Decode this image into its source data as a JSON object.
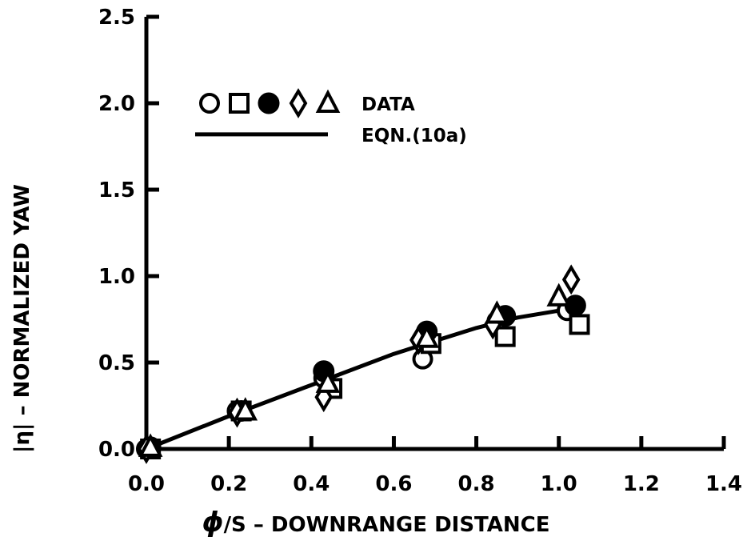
{
  "chart_data": {
    "type": "scatter",
    "xlabel_symbol": "ϕ",
    "xlabel": "/S – DOWNRANGE  DISTANCE",
    "ylabel": "|η| – NORMALIZED  YAW",
    "xlim": [
      0.0,
      1.4
    ],
    "ylim": [
      0.0,
      2.5
    ],
    "x_ticks": [
      "0.0",
      "0.2",
      "0.4",
      "0.6",
      "0.8",
      "1.0",
      "1.2",
      "1.4"
    ],
    "y_ticks": [
      "0.0",
      "0.5",
      "1.0",
      "1.5",
      "2.0",
      "2.5"
    ],
    "grid": false,
    "legend_position": "upper-left",
    "legend": [
      {
        "label": "DATA",
        "markers": [
          "circle-open",
          "square-open",
          "circle-filled",
          "diamond-open",
          "triangle-open"
        ]
      },
      {
        "label": "EQN.(10a)",
        "style": "solid-line"
      }
    ],
    "series": [
      {
        "marker": "circle-open",
        "points": [
          [
            0.0,
            0.0
          ],
          [
            0.22,
            0.22
          ],
          [
            0.43,
            0.41
          ],
          [
            0.67,
            0.52
          ],
          [
            0.85,
            0.74
          ],
          [
            1.02,
            0.8
          ]
        ]
      },
      {
        "marker": "square-open",
        "points": [
          [
            0.01,
            0.0
          ],
          [
            0.23,
            0.22
          ],
          [
            0.45,
            0.35
          ],
          [
            0.69,
            0.61
          ],
          [
            0.87,
            0.65
          ],
          [
            1.05,
            0.72
          ]
        ]
      },
      {
        "marker": "circle-filled",
        "points": [
          [
            0.01,
            0.01
          ],
          [
            0.23,
            0.22
          ],
          [
            0.43,
            0.45
          ],
          [
            0.68,
            0.68
          ],
          [
            0.87,
            0.77
          ],
          [
            1.04,
            0.83
          ]
        ]
      },
      {
        "marker": "diamond-open",
        "points": [
          [
            0.0,
            0.0
          ],
          [
            0.22,
            0.21
          ],
          [
            0.43,
            0.3
          ],
          [
            0.66,
            0.63
          ],
          [
            0.84,
            0.72
          ],
          [
            1.03,
            0.98
          ]
        ]
      },
      {
        "marker": "triangle-open",
        "points": [
          [
            0.01,
            0.01
          ],
          [
            0.24,
            0.22
          ],
          [
            0.44,
            0.38
          ],
          [
            0.68,
            0.64
          ],
          [
            0.85,
            0.78
          ],
          [
            1.0,
            0.88
          ]
        ]
      }
    ],
    "curve": {
      "label": "EQN.(10a)",
      "points": [
        [
          0.0,
          0.0
        ],
        [
          0.2,
          0.19
        ],
        [
          0.4,
          0.37
        ],
        [
          0.6,
          0.55
        ],
        [
          0.8,
          0.7
        ],
        [
          0.9,
          0.76
        ],
        [
          1.0,
          0.8
        ],
        [
          1.05,
          0.82
        ]
      ]
    }
  }
}
